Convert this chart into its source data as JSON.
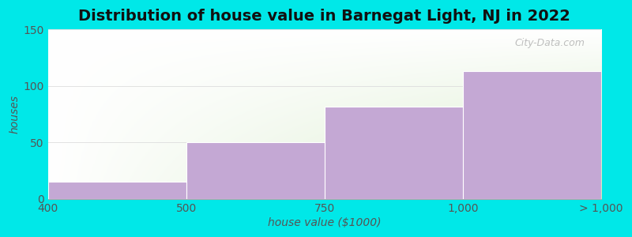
{
  "title": "Distribution of house value in Barnegat Light, NJ in 2022",
  "xlabel": "house value ($1000)",
  "ylabel": "houses",
  "categories": [
    "400",
    "500",
    "750",
    "1,000",
    "> 1,000"
  ],
  "values": [
    15,
    50,
    82,
    113
  ],
  "bar_color": "#c4a8d4",
  "bar_edgecolor": "#ffffff",
  "ylim": [
    0,
    150
  ],
  "yticks": [
    0,
    50,
    100,
    150
  ],
  "background_outer": "#00e8e8",
  "background_green": "#d0e8c0",
  "grid_color": "#dddddd",
  "title_fontsize": 14,
  "axis_label_fontsize": 10,
  "tick_fontsize": 10,
  "watermark_text": "City-Data.com"
}
